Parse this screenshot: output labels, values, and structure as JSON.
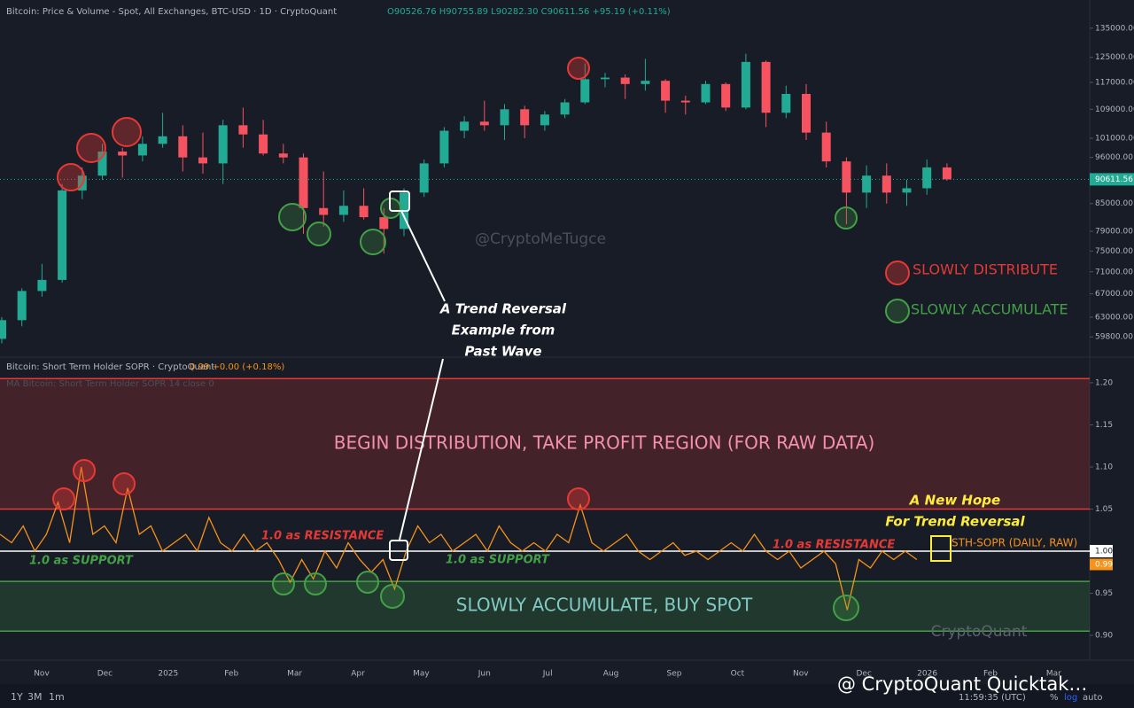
{
  "chart_data": [
    {
      "type": "candlestick",
      "title": "Bitcoin: Price & Volume - Spot, All Exchanges, BTC-USD · 1D · CryptoQuant",
      "ohlc_readout": "O90526.76 H90755.89 L90282.30 C90611.56 +95.19 (+0.11%)",
      "open": [
        59500,
        62500,
        67500,
        69500,
        88000,
        91500,
        97500,
        96500,
        99500,
        101500,
        96000,
        94500,
        104500,
        102000,
        97000,
        96000,
        84000,
        82500,
        84500,
        82000,
        79500,
        87500,
        94500,
        103000,
        105500,
        104500,
        109000,
        104500,
        107500,
        111000,
        118000,
        118500,
        116500,
        117500,
        111500,
        111000,
        116500,
        109500,
        123500,
        108000,
        113500,
        102500,
        95000,
        87500,
        91500,
        87500,
        88500,
        93500
      ],
      "high": [
        63000,
        68000,
        72500,
        89500,
        93500,
        99500,
        98500,
        101500,
        108000,
        104500,
        102500,
        106000,
        109500,
        106000,
        99500,
        97000,
        92500,
        88000,
        88500,
        84000,
        88500,
        95500,
        104000,
        107000,
        111500,
        110500,
        110000,
        108500,
        112000,
        123000,
        120000,
        119500,
        124500,
        118000,
        113000,
        117500,
        117000,
        126200,
        124000,
        116000,
        116500,
        105500,
        96000,
        94000,
        94500,
        90500,
        95500,
        94500
      ],
      "low": [
        58800,
        61500,
        66500,
        69000,
        86000,
        90500,
        91000,
        95000,
        98500,
        92500,
        92000,
        89500,
        98500,
        96500,
        94500,
        78500,
        80000,
        81000,
        81500,
        74500,
        78000,
        86500,
        93500,
        101000,
        103000,
        100500,
        101000,
        103000,
        106500,
        110500,
        115500,
        112000,
        114500,
        108000,
        107500,
        110500,
        108500,
        109000,
        104000,
        106500,
        100500,
        93500,
        80500,
        84000,
        85000,
        84500,
        87000,
        90300
      ],
      "close": [
        62500,
        67500,
        69500,
        88000,
        91500,
        97500,
        96500,
        99500,
        101500,
        96000,
        94500,
        104500,
        102000,
        97000,
        96000,
        84000,
        82500,
        84500,
        82000,
        79500,
        87500,
        94500,
        103000,
        105500,
        104500,
        109000,
        104500,
        107500,
        111000,
        118000,
        118500,
        116500,
        117500,
        111500,
        111000,
        116500,
        109500,
        123500,
        108000,
        113500,
        102500,
        95000,
        87500,
        91500,
        87500,
        88500,
        93500,
        90611.56
      ],
      "up_color": "#22ab94",
      "down_color": "#f7525f",
      "log_scale": true,
      "ylim": [
        57100,
        145400
      ],
      "yticks": [
        {
          "value": 59800,
          "label": "59800.00"
        },
        {
          "value": 63000,
          "label": "63000.00"
        },
        {
          "value": 67000,
          "label": "67000.00"
        },
        {
          "value": 71000,
          "label": "71000.00"
        },
        {
          "value": 75000,
          "label": "75000.00"
        },
        {
          "value": 79000,
          "label": "79000.00"
        },
        {
          "value": 85000,
          "label": "85000.00"
        },
        {
          "value": 96000,
          "label": "96000.00"
        },
        {
          "value": 101000,
          "label": "101000.00"
        },
        {
          "value": 109000,
          "label": "109000.00"
        },
        {
          "value": 117000,
          "label": "117000.00"
        },
        {
          "value": 125000,
          "label": "125000.00"
        },
        {
          "value": 135000,
          "label": "135000.00"
        }
      ],
      "last_price": 90611.56,
      "legend": [
        {
          "name": "SLOWLY DISTRIBUTE",
          "color": "#e53935"
        },
        {
          "name": "SLOWLY ACCUMULATE",
          "color": "#43a047"
        }
      ],
      "watermark": "@CryptoMeTugce",
      "annotation": [
        "A Trend Reversal",
        "Example from",
        "Past Wave"
      ]
    },
    {
      "type": "line",
      "title": "Bitcoin: Short Term Holder SOPR · CryptoQuant",
      "readout": "0.99 +0.00 (+0.18%)",
      "ma_title": "MA Bitcoin: Short Term Holder SOPR 14 close 0",
      "series": [
        {
          "name": "STH-SOPR (DAILY, RAW)",
          "color": "#f7931a",
          "values": [
            1.02,
            1.01,
            1.03,
            1.0,
            1.02,
            1.058,
            1.01,
            1.1,
            1.02,
            1.03,
            1.01,
            1.075,
            1.02,
            1.03,
            1.0,
            1.01,
            1.02,
            1.0,
            1.04,
            1.01,
            1.0,
            1.02,
            1.0,
            1.01,
            0.99,
            0.963,
            0.99,
            0.967,
            1.0,
            0.98,
            1.01,
            0.99,
            0.975,
            0.99,
            0.955,
            1.0,
            1.03,
            1.01,
            1.02,
            1.0,
            1.01,
            1.02,
            1.0,
            1.03,
            1.01,
            1.0,
            1.01,
            1.0,
            1.02,
            1.01,
            1.055,
            1.01,
            1.0,
            1.01,
            1.02,
            1.0,
            0.99,
            1.0,
            1.01,
            0.995,
            1.0,
            0.99,
            1.0,
            1.01,
            1.0,
            1.02,
            1.0,
            0.99,
            1.0,
            0.98,
            0.99,
            1.0,
            0.985,
            0.93,
            0.99,
            0.98,
            1.0,
            0.99,
            1.0,
            0.99
          ]
        }
      ],
      "ylim": [
        0.8705,
        1.2126
      ],
      "yticks": [
        {
          "value": 0.9,
          "label": "0.90"
        },
        {
          "value": 0.95,
          "label": "0.95"
        },
        {
          "value": 1,
          "label": "1.00"
        },
        {
          "value": 1.05,
          "label": "1.05"
        },
        {
          "value": 1.1,
          "label": "1.10"
        },
        {
          "value": 1.15,
          "label": "1.15"
        },
        {
          "value": 1.2,
          "label": "1.20"
        }
      ],
      "reference_line": 1,
      "zones": [
        {
          "label": "BEGIN DISTRIBUTION, TAKE PROFIT REGION (FOR RAW DATA)",
          "from": 1.05,
          "to": 1.205,
          "color": "#e53935",
          "text_color": "#f48fb1"
        },
        {
          "label": "SLOWLY ACCUMULATE, BUY SPOT",
          "from": 0.905,
          "to": 0.964,
          "color": "#43a047",
          "text_color": "#80cbc4"
        }
      ],
      "support_label": "1.0 as SUPPORT",
      "resistance_label": "1.0 as RESISTANCE",
      "annotation": [
        "A New Hope",
        "For Trend Reversal"
      ],
      "x_axis_labels": [
        "Nov",
        "Dec",
        "2025",
        "Feb",
        "Mar",
        "Apr",
        "May",
        "Jun",
        "Jul",
        "Aug",
        "Sep",
        "Oct",
        "Nov",
        "Dec",
        "2026",
        "Feb",
        "Mar"
      ],
      "watermark": "CryptoQuant"
    }
  ],
  "toolbar": {
    "ranges": [
      "1Y",
      "3M",
      "1m"
    ],
    "clock": "11:59:35 (UTC)",
    "scale_buttons": [
      "%",
      "log",
      "auto"
    ],
    "footer": "@ CryptoQuant Quicktak…"
  }
}
